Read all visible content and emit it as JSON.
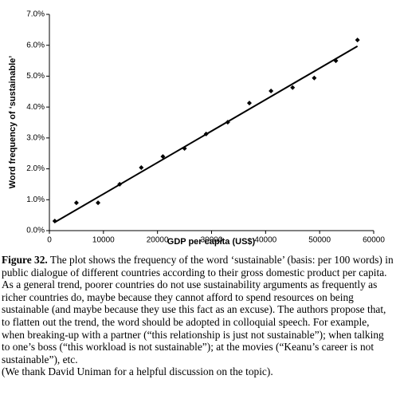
{
  "chart_data": {
    "type": "scatter",
    "x_label": "GDP per capita (US$)",
    "y_label": "Word frequency of ‘sustainable’",
    "color": "#000000",
    "series": [
      {
        "x": [
          1000,
          5000,
          9000,
          13000,
          17000,
          21000,
          25000,
          29000,
          33000,
          37000,
          41000,
          45000,
          49000,
          53000,
          57000
        ],
        "values": [
          0.31,
          0.9,
          0.9,
          1.5,
          2.04,
          2.4,
          2.66,
          3.13,
          3.51,
          4.13,
          4.52,
          4.63,
          4.94,
          5.5,
          6.17
        ]
      }
    ],
    "trendline": {
      "x": [
        1000,
        57000
      ],
      "y": [
        0.27,
        5.97
      ]
    },
    "xlim": [
      0,
      60000
    ],
    "xticks": [
      0,
      10000,
      20000,
      30000,
      40000,
      50000,
      60000
    ],
    "ylim": [
      0,
      7
    ],
    "yticks": [
      {
        "value": 0,
        "label": "0.0%"
      },
      {
        "value": 1,
        "label": "1.0%"
      },
      {
        "value": 2,
        "label": "2.0%"
      },
      {
        "value": 3,
        "label": "3.0%"
      },
      {
        "value": 4,
        "label": "4.0%"
      },
      {
        "value": 5,
        "label": "5.0%"
      },
      {
        "value": 6,
        "label": "6.0%"
      },
      {
        "value": 7,
        "label": "7.0%"
      }
    ]
  },
  "caption": {
    "label": "Figure 32.",
    "text": "The plot shows the frequency of the word ‘sustainable’ (basis: per 100 words) in public dialogue of different countries according to their gross domestic product per capita. As a general trend, poorer countries do not use sustainability arguments as frequently as richer countries do, maybe because they cannot afford to spend resources on being sustainable (and maybe because they use this fact as an excuse). The authors propose that, to flatten out the trend, the word should be adopted in colloquial speech. For example, when breaking-up with a partner (“this relationship is just not sustainable”); when talking to one’s boss (“this workload is not sustainable”); at the movies (“Keanu’s career is not sustainable”), etc.",
    "acknowledgement": "(We thank David Uniman for a helpful discussion on the topic)."
  }
}
